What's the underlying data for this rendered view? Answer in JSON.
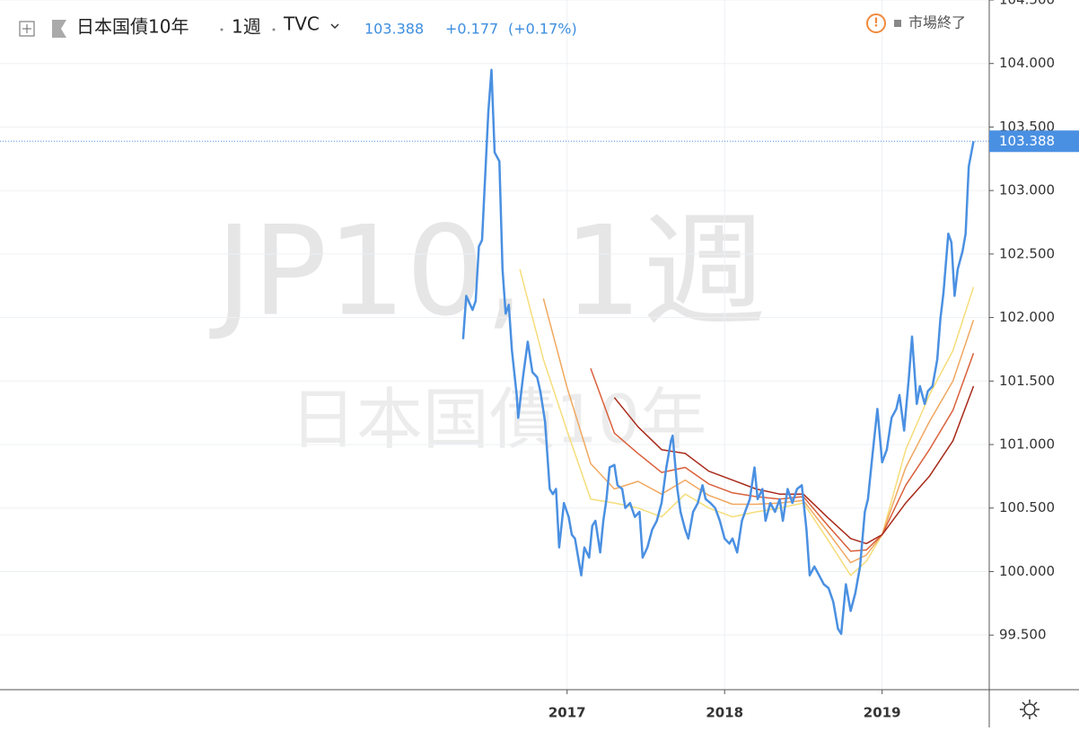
{
  "header": {
    "symbol": "日本国債10年",
    "interval": "1週",
    "exchange": "TVC",
    "price": "103.388",
    "change": "+0.177",
    "change_pct": "(+0.17%)",
    "status": "市場終了"
  },
  "watermark": {
    "line1": "JP10, 1週",
    "line2": "日本国債10年"
  },
  "chart_data": {
    "type": "line",
    "xlim": [
      2013.4,
      2019.68
    ],
    "ylim": [
      99.07,
      104.5
    ],
    "xticks": [
      2017,
      2018,
      2019
    ],
    "yticks": [
      {
        "value": 99.5,
        "label": "99.500"
      },
      {
        "value": 100,
        "label": "100.000"
      },
      {
        "value": 100.5,
        "label": "100.500"
      },
      {
        "value": 101,
        "label": "101.000"
      },
      {
        "value": 101.5,
        "label": "101.500"
      },
      {
        "value": 102,
        "label": "102.000"
      },
      {
        "value": 102.5,
        "label": "102.500"
      },
      {
        "value": 103,
        "label": "103.000"
      },
      {
        "value": 103.5,
        "label": "103.500"
      },
      {
        "value": 104,
        "label": "104.000"
      },
      {
        "value": 104.5,
        "label": "104.500"
      }
    ],
    "grid": true,
    "series": [
      {
        "color": "#f5dd7a",
        "x": [
          2016.7,
          2016.85,
          2017.0,
          2017.15,
          2017.3,
          2017.45,
          2017.6,
          2017.75,
          2017.9,
          2018.05,
          2018.2,
          2018.35,
          2018.5,
          2018.65,
          2018.8,
          2018.9,
          2019.0,
          2019.15,
          2019.3,
          2019.45,
          2019.58
        ],
        "values": [
          102.38,
          101.67,
          101.11,
          100.57,
          100.54,
          100.5,
          100.43,
          100.61,
          100.5,
          100.43,
          100.47,
          100.5,
          100.54,
          100.26,
          99.97,
          100.08,
          100.29,
          100.96,
          101.39,
          101.74,
          102.24
        ]
      },
      {
        "color": "#f0a860",
        "x": [
          2016.7,
          2016.85,
          2017.0,
          2017.15,
          2017.3,
          2017.45,
          2017.6,
          2017.75,
          2017.9,
          2018.05,
          2018.2,
          2018.35,
          2018.5,
          2018.65,
          2018.8,
          2018.9,
          2019.0,
          2019.15,
          2019.3,
          2019.45,
          2019.58
        ],
        "values": [
          null,
          102.15,
          101.45,
          100.85,
          100.65,
          100.71,
          100.61,
          100.72,
          100.6,
          100.53,
          100.53,
          100.54,
          100.56,
          100.32,
          100.07,
          100.13,
          100.29,
          100.82,
          101.18,
          101.5,
          101.98
        ]
      },
      {
        "color": "#d9603b",
        "x": [
          2016.7,
          2016.85,
          2017.0,
          2017.15,
          2017.3,
          2017.45,
          2017.6,
          2017.75,
          2017.9,
          2018.05,
          2018.2,
          2018.35,
          2018.5,
          2018.65,
          2018.8,
          2018.9,
          2019.0,
          2019.15,
          2019.3,
          2019.45,
          2019.58
        ],
        "values": [
          null,
          null,
          null,
          101.6,
          101.09,
          100.93,
          100.78,
          100.82,
          100.69,
          100.62,
          100.59,
          100.57,
          100.59,
          100.37,
          100.16,
          100.17,
          100.29,
          100.68,
          100.96,
          101.27,
          101.72
        ]
      },
      {
        "color": "#a82a1a",
        "x": [
          2016.7,
          2016.85,
          2017.0,
          2017.15,
          2017.3,
          2017.45,
          2017.6,
          2017.75,
          2017.9,
          2018.05,
          2018.2,
          2018.35,
          2018.5,
          2018.65,
          2018.8,
          2018.9,
          2019.0,
          2019.15,
          2019.3,
          2019.45,
          2019.58
        ],
        "values": [
          null,
          null,
          null,
          null,
          101.37,
          101.14,
          100.96,
          100.93,
          100.79,
          100.72,
          100.65,
          100.61,
          100.61,
          100.43,
          100.26,
          100.22,
          100.29,
          100.54,
          100.75,
          101.03,
          101.46
        ]
      },
      {
        "color": "#4a90e2",
        "x": [
          2016.34,
          2016.36,
          2016.4,
          2016.42,
          2016.44,
          2016.46,
          2016.5,
          2016.52,
          2016.54,
          2016.57,
          2016.59,
          2016.61,
          2016.63,
          2016.65,
          2016.68,
          2016.69,
          2016.72,
          2016.75,
          2016.78,
          2016.81,
          2016.83,
          2016.86,
          2016.89,
          2016.91,
          2016.93,
          2016.95,
          2016.98,
          2017.01,
          2017.03,
          2017.05,
          2017.09,
          2017.11,
          2017.14,
          2017.16,
          2017.18,
          2017.21,
          2017.23,
          2017.25,
          2017.27,
          2017.3,
          2017.32,
          2017.35,
          2017.37,
          2017.4,
          2017.43,
          2017.46,
          2017.48,
          2017.51,
          2017.54,
          2017.57,
          2017.6,
          2017.63,
          2017.66,
          2017.67,
          2017.7,
          2017.72,
          2017.75,
          2017.77,
          2017.8,
          2017.83,
          2017.86,
          2017.88,
          2017.91,
          2017.94,
          2017.97,
          2018.0,
          2018.03,
          2018.05,
          2018.08,
          2018.11,
          2018.13,
          2018.16,
          2018.19,
          2018.21,
          2018.24,
          2018.26,
          2018.29,
          2018.32,
          2018.35,
          2018.37,
          2018.4,
          2018.43,
          2018.46,
          2018.49,
          2018.52,
          2018.54,
          2018.57,
          2018.6,
          2018.63,
          2018.66,
          2018.69,
          2018.72,
          2018.74,
          2018.77,
          2018.8,
          2018.83,
          2018.86,
          2018.89,
          2018.91,
          2018.94,
          2018.97,
          2019.0,
          2019.03,
          2019.06,
          2019.09,
          2019.11,
          2019.14,
          2019.17,
          2019.19,
          2019.22,
          2019.24,
          2019.27,
          2019.29,
          2019.32,
          2019.35,
          2019.37,
          2019.39,
          2019.42,
          2019.44,
          2019.46,
          2019.48,
          2019.51,
          2019.53,
          2019.55,
          2019.58
        ],
        "values": [
          101.83,
          102.17,
          102.06,
          102.13,
          102.56,
          102.61,
          103.62,
          103.95,
          103.3,
          103.23,
          102.38,
          102.03,
          102.1,
          101.74,
          101.39,
          101.21,
          101.53,
          101.81,
          101.57,
          101.53,
          101.42,
          101.18,
          100.65,
          100.61,
          100.65,
          100.19,
          100.54,
          100.43,
          100.29,
          100.26,
          99.97,
          100.19,
          100.11,
          100.36,
          100.4,
          100.15,
          100.4,
          100.57,
          100.82,
          100.84,
          100.68,
          100.65,
          100.5,
          100.54,
          100.43,
          100.47,
          100.11,
          100.19,
          100.33,
          100.4,
          100.54,
          100.82,
          101.03,
          101.07,
          100.65,
          100.47,
          100.33,
          100.26,
          100.47,
          100.54,
          100.68,
          100.57,
          100.54,
          100.5,
          100.4,
          100.26,
          100.22,
          100.26,
          100.15,
          100.4,
          100.47,
          100.57,
          100.82,
          100.57,
          100.65,
          100.4,
          100.54,
          100.47,
          100.57,
          100.4,
          100.65,
          100.54,
          100.65,
          100.68,
          100.33,
          99.97,
          100.04,
          99.97,
          99.9,
          99.87,
          99.76,
          99.55,
          99.51,
          99.9,
          99.69,
          99.83,
          100.04,
          100.47,
          100.57,
          100.93,
          101.28,
          100.86,
          100.96,
          101.21,
          101.28,
          101.39,
          101.11,
          101.53,
          101.85,
          101.32,
          101.46,
          101.32,
          101.42,
          101.46,
          101.67,
          101.99,
          102.2,
          102.66,
          102.59,
          102.17,
          102.38,
          102.52,
          102.66,
          103.19,
          103.388
        ]
      }
    ]
  }
}
